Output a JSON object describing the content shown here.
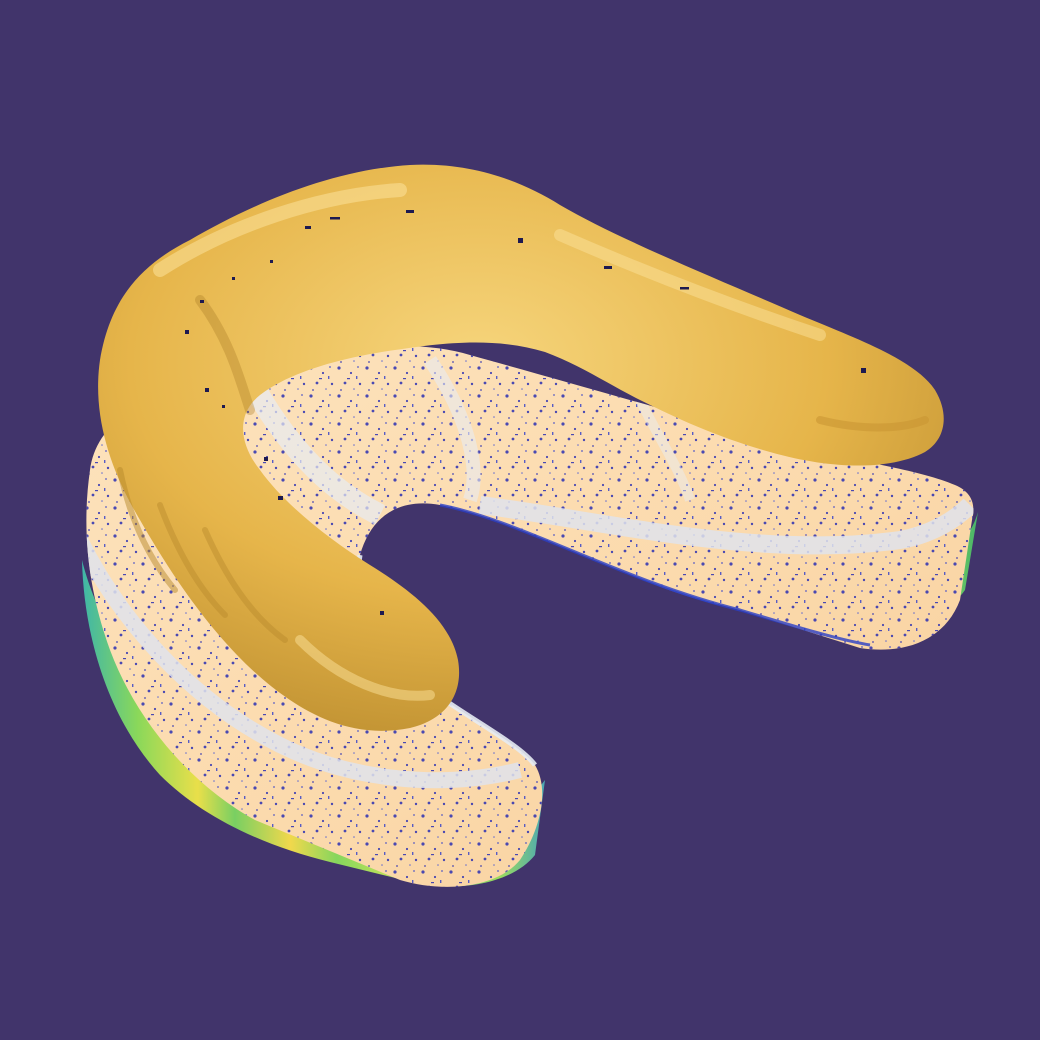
{
  "viewport": {
    "background_color": "#41346b",
    "scene": "3d-dental-model",
    "colors": {
      "aligner_yellow": "#e9b94f",
      "aligner_highlight": "#f6d57c",
      "aligner_shadow": "#b78a2c",
      "cast_base_cream": "#fcdcb0",
      "cast_gray": "#dfe3ec",
      "deviation_blue": "#2b2fb2",
      "deviation_green": "#7fd35a",
      "deviation_yellow": "#f0e04a",
      "deviation_orange": "#e8872b",
      "deviation_red": "#d84b25",
      "deviation_cyan": "#4fc7d9"
    }
  }
}
